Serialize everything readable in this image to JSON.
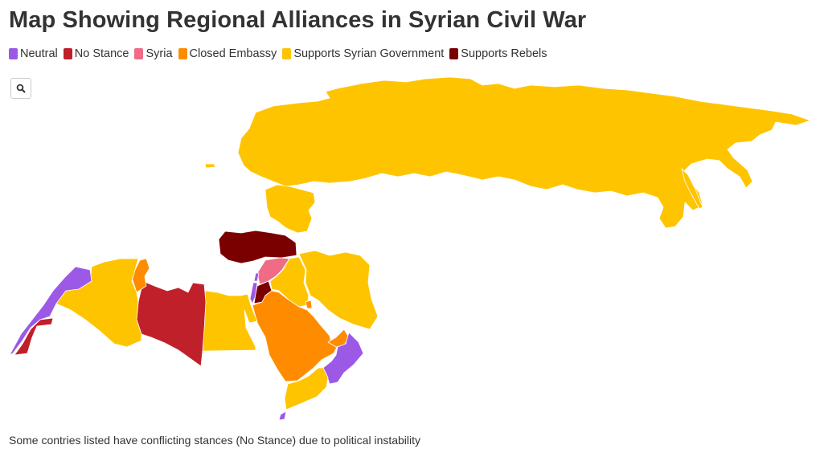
{
  "title": "Map Showing Regional Alliances in Syrian Civil War",
  "legend": [
    {
      "label": "Neutral",
      "color": "#9b59e6"
    },
    {
      "label": "No Stance",
      "color": "#c0202a"
    },
    {
      "label": "Syria",
      "color": "#ef6b86"
    },
    {
      "label": "Closed Embassy",
      "color": "#ff8c00"
    },
    {
      "label": "Supports Syrian Government",
      "color": "#ffc400"
    },
    {
      "label": "Supports Rebels",
      "color": "#7a0000"
    }
  ],
  "search_icon": "search-icon",
  "note": "Some contries listed have conflicting stances (No Stance) due to political instability",
  "regions": [
    {
      "id": "russia",
      "category": "Supports Syrian Government"
    },
    {
      "id": "ukraine",
      "category": "Supports Syrian Government"
    },
    {
      "id": "turkey",
      "category": "Supports Rebels"
    },
    {
      "id": "syria",
      "category": "Syria"
    },
    {
      "id": "lebanon",
      "category": "Neutral"
    },
    {
      "id": "israel",
      "category": "Neutral"
    },
    {
      "id": "jordan",
      "category": "Supports Rebels"
    },
    {
      "id": "iraq",
      "category": "Supports Syrian Government"
    },
    {
      "id": "iran",
      "category": "Supports Syrian Government"
    },
    {
      "id": "kuwait",
      "category": "Closed Embassy"
    },
    {
      "id": "saudi-arabia",
      "category": "Closed Embassy"
    },
    {
      "id": "uae",
      "category": "Closed Embassy"
    },
    {
      "id": "oman",
      "category": "Neutral"
    },
    {
      "id": "yemen",
      "category": "Supports Syrian Government"
    },
    {
      "id": "egypt",
      "category": "Supports Syrian Government"
    },
    {
      "id": "libya",
      "category": "No Stance"
    },
    {
      "id": "tunisia",
      "category": "Closed Embassy"
    },
    {
      "id": "algeria",
      "category": "Supports Syrian Government"
    },
    {
      "id": "morocco",
      "category": "Neutral"
    },
    {
      "id": "western-sahara",
      "category": "No Stance"
    },
    {
      "id": "djibouti",
      "category": "Neutral"
    },
    {
      "id": "sakhalin",
      "category": "Supports Syrian Government"
    },
    {
      "id": "kaliningrad",
      "category": "Supports Syrian Government"
    }
  ]
}
